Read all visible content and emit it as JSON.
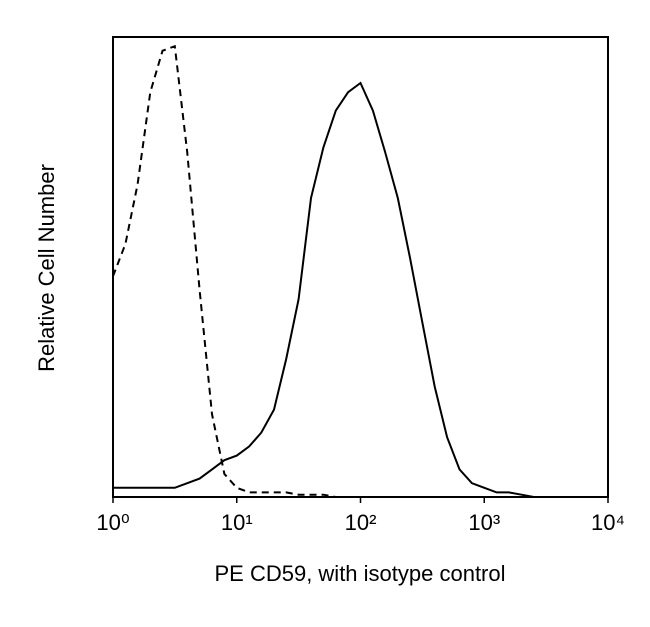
{
  "chart_data": {
    "type": "line",
    "x_label": "PE CD59, with isotype control",
    "y_label": "Relative Cell Number",
    "xlog": true,
    "xlim": [
      1,
      10000
    ],
    "ylim": [
      0,
      100
    ],
    "xticks": [
      {
        "value": 1,
        "label": "10⁰"
      },
      {
        "value": 10,
        "label": "10¹"
      },
      {
        "value": 100,
        "label": "10²"
      },
      {
        "value": 1000,
        "label": "10³"
      },
      {
        "value": 10000,
        "label": "10⁴"
      }
    ],
    "x": [
      1,
      1.26,
      1.58,
      2,
      2.51,
      3.16,
      3.98,
      5.01,
      6.31,
      7.94,
      10,
      12.6,
      15.8,
      20,
      25.1,
      31.6,
      39.8,
      50.1,
      63.1,
      79.4,
      100,
      126,
      158,
      200,
      251,
      316,
      398,
      501,
      631,
      794,
      1000,
      1260,
      1580,
      2000,
      2510,
      3160,
      3980,
      5010,
      6310,
      7940,
      10000
    ],
    "series": [
      {
        "color": "#000000",
        "line_style": "solid",
        "values": [
          2,
          2,
          2,
          2,
          2,
          2,
          3,
          4,
          6,
          8,
          9,
          11,
          14,
          19,
          30,
          43,
          65,
          76,
          84,
          88,
          90,
          84,
          75,
          65,
          52,
          38,
          24,
          13,
          6,
          3,
          2,
          1,
          1,
          0.5,
          0,
          0,
          0,
          0,
          0,
          0,
          0
        ]
      },
      {
        "color": "#000000",
        "line_style": "dashed",
        "values": [
          48,
          55,
          68,
          88,
          97,
          98,
          75,
          45,
          18,
          5,
          2,
          1,
          1,
          1,
          1,
          0.5,
          0.5,
          0.5,
          0,
          0,
          0,
          0,
          0,
          0,
          0,
          0,
          0,
          0,
          0,
          0,
          0,
          0,
          0,
          0,
          0,
          0,
          0,
          0,
          0,
          0,
          0
        ]
      }
    ]
  }
}
